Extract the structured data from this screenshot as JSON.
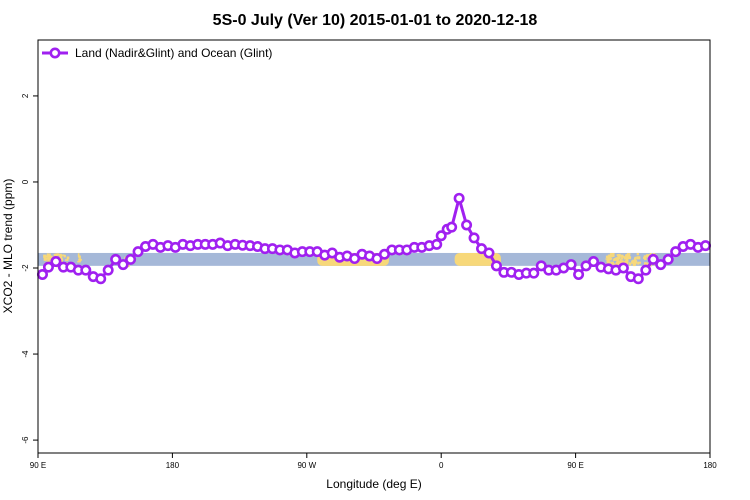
{
  "chart_data": {
    "type": "line",
    "title": "5S-0 July (Ver 10)   2015-01-01 to 2020-12-18",
    "xlabel": "Longitude (deg E)",
    "ylabel": "XCO2 - MLO trend (ppm)",
    "xlim": [
      90,
      540
    ],
    "ylim": [
      -6.3,
      3.3
    ],
    "x_ticks": [
      {
        "value": 90,
        "label": "90 E"
      },
      {
        "value": 180,
        "label": "180"
      },
      {
        "value": 270,
        "label": "90 W"
      },
      {
        "value": 360,
        "label": "0"
      },
      {
        "value": 450,
        "label": "90 E"
      },
      {
        "value": 540,
        "label": "180"
      }
    ],
    "y_ticks": [
      {
        "value": -6,
        "label": "-6"
      },
      {
        "value": -4,
        "label": "-4"
      },
      {
        "value": -2,
        "label": "-2"
      },
      {
        "value": 0,
        "label": "0"
      },
      {
        "value": 2,
        "label": "2"
      }
    ],
    "legend": {
      "position": "top-left",
      "entries": [
        "Land (Nadir&Glint) and Ocean (Glint)"
      ]
    },
    "series": [
      {
        "name": "Land (Nadir&Glint) and Ocean (Glint)",
        "color": "#a020f0",
        "x": [
          93,
          97,
          102,
          107,
          112,
          117,
          122,
          127,
          132,
          137,
          142,
          147,
          152,
          157,
          162,
          167,
          172,
          177,
          182,
          187,
          192,
          197,
          202,
          207,
          212,
          217,
          222,
          227,
          232,
          237,
          242,
          247,
          252,
          257,
          262,
          267,
          272,
          277,
          282,
          287,
          292,
          297,
          302,
          307,
          312,
          317,
          322,
          327,
          332,
          337,
          342,
          347,
          352,
          357,
          360,
          364,
          367,
          372,
          377,
          382,
          387,
          392,
          397,
          402,
          407,
          412,
          417,
          422,
          427,
          432,
          437,
          442,
          447,
          452,
          457,
          462,
          467,
          472,
          477,
          482,
          487,
          492,
          497,
          502,
          507,
          512,
          517,
          522,
          527,
          532,
          537
        ],
        "y": [
          -2.15,
          -1.98,
          -1.85,
          -1.98,
          -1.98,
          -2.05,
          -2.05,
          -2.2,
          -2.25,
          -2.05,
          -1.8,
          -1.92,
          -1.8,
          -1.62,
          -1.5,
          -1.45,
          -1.52,
          -1.48,
          -1.52,
          -1.45,
          -1.48,
          -1.45,
          -1.45,
          -1.45,
          -1.42,
          -1.48,
          -1.45,
          -1.47,
          -1.48,
          -1.5,
          -1.55,
          -1.55,
          -1.58,
          -1.58,
          -1.65,
          -1.62,
          -1.62,
          -1.62,
          -1.7,
          -1.65,
          -1.75,
          -1.72,
          -1.78,
          -1.68,
          -1.72,
          -1.78,
          -1.68,
          -1.58,
          -1.58,
          -1.58,
          -1.52,
          -1.52,
          -1.48,
          -1.45,
          -1.25,
          -1.1,
          -1.05,
          -0.38,
          -1.0,
          -1.3,
          -1.55,
          -1.65,
          -1.95,
          -2.1,
          -2.1,
          -2.15,
          -2.12,
          -2.12,
          -1.95,
          -2.05,
          -2.05,
          -2.0,
          -1.92,
          -2.15,
          -1.95,
          -1.85,
          -1.98,
          -2.02,
          -2.05,
          -2.0,
          -2.2,
          -2.25,
          -2.05,
          -1.8,
          -1.92,
          -1.8,
          -1.62,
          -1.5,
          -1.45,
          -1.52,
          -1.48
        ]
      }
    ],
    "background_band": {
      "y_range": [
        -1.95,
        -1.65
      ],
      "ocean_color": "#a5b8d8",
      "land_color": "#f7d87a",
      "land_segments": [
        {
          "x": [
            93,
            110
          ],
          "kind": "scatter"
        },
        {
          "x": [
            116,
            118
          ],
          "kind": "scatter"
        },
        {
          "x": [
            147,
            150
          ],
          "kind": "scatter"
        },
        {
          "x": [
            277,
            325
          ],
          "kind": "solid"
        },
        {
          "x": [
            369,
            400
          ],
          "kind": "solid"
        },
        {
          "x": [
            470,
            492
          ],
          "kind": "scatter"
        },
        {
          "x": [
            495,
            502
          ],
          "kind": "scatter"
        }
      ]
    }
  }
}
